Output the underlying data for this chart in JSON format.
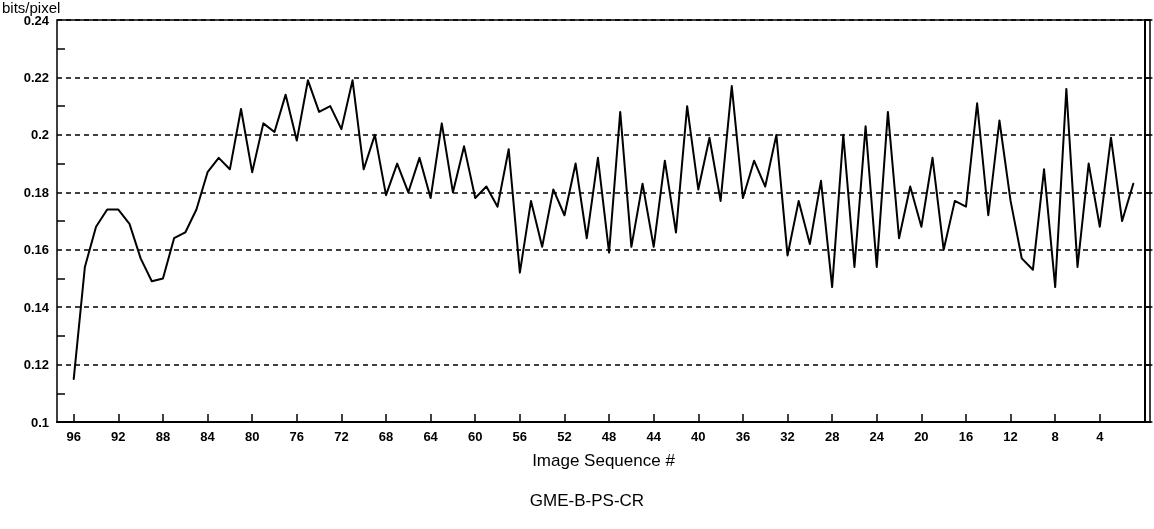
{
  "chart_data": {
    "type": "line",
    "xlabel": "Image Sequence #",
    "ylabel": "bits/pixel",
    "annotations": [
      "GME-B-PS-CR"
    ],
    "x": [
      96,
      95,
      94,
      93,
      92,
      91,
      90,
      89,
      88,
      87,
      86,
      85,
      84,
      83,
      82,
      81,
      80,
      79,
      78,
      77,
      76,
      75,
      74,
      73,
      72,
      71,
      70,
      69,
      68,
      67,
      66,
      65,
      64,
      63,
      62,
      61,
      60,
      59,
      58,
      57,
      56,
      55,
      54,
      53,
      52,
      51,
      50,
      49,
      48,
      47,
      46,
      45,
      44,
      43,
      42,
      41,
      40,
      39,
      38,
      37,
      36,
      35,
      34,
      33,
      32,
      31,
      30,
      29,
      28,
      27,
      26,
      25,
      24,
      23,
      22,
      21,
      20,
      19,
      18,
      17,
      16,
      15,
      14,
      13,
      12,
      11,
      10,
      9,
      8,
      7,
      6,
      5,
      4,
      3,
      2,
      1
    ],
    "series": [
      {
        "color": "#000000",
        "values": [
          0.115,
          0.154,
          0.168,
          0.174,
          0.174,
          0.169,
          0.157,
          0.149,
          0.15,
          0.164,
          0.166,
          0.174,
          0.187,
          0.192,
          0.188,
          0.209,
          0.187,
          0.204,
          0.201,
          0.214,
          0.198,
          0.219,
          0.208,
          0.21,
          0.202,
          0.219,
          0.188,
          0.2,
          0.179,
          0.19,
          0.18,
          0.192,
          0.178,
          0.204,
          0.18,
          0.196,
          0.178,
          0.182,
          0.175,
          0.195,
          0.152,
          0.177,
          0.161,
          0.181,
          0.172,
          0.19,
          0.164,
          0.192,
          0.159,
          0.208,
          0.161,
          0.183,
          0.161,
          0.191,
          0.166,
          0.21,
          0.181,
          0.199,
          0.177,
          0.217,
          0.178,
          0.191,
          0.182,
          0.2,
          0.158,
          0.177,
          0.162,
          0.184,
          0.147,
          0.2,
          0.154,
          0.203,
          0.154,
          0.208,
          0.164,
          0.182,
          0.168,
          0.192,
          0.16,
          0.177,
          0.175,
          0.211,
          0.172,
          0.205,
          0.177,
          0.157,
          0.153,
          0.188,
          0.147,
          0.216,
          0.154,
          0.19,
          0.168,
          0.199,
          0.17,
          0.183
        ]
      }
    ],
    "xlim": [
      97.5,
      -0.5
    ],
    "xticks": [
      96,
      92,
      88,
      84,
      80,
      76,
      72,
      68,
      64,
      60,
      56,
      52,
      48,
      44,
      40,
      36,
      32,
      28,
      24,
      20,
      16,
      12,
      8,
      4
    ],
    "ylim": [
      0.1,
      0.24
    ],
    "yticks": [
      0.1,
      {
        "value": 0.11,
        "label": null
      },
      0.12,
      {
        "value": 0.13,
        "label": null
      },
      0.14,
      {
        "value": 0.15,
        "label": null
      },
      0.16,
      {
        "value": 0.17,
        "label": null
      },
      0.18,
      {
        "value": 0.19,
        "label": null
      },
      0.2,
      {
        "value": 0.21,
        "label": null
      },
      0.22,
      {
        "value": 0.23,
        "label": null
      },
      0.24
    ],
    "grid": "y",
    "line_style": "solid",
    "marker": "none"
  }
}
